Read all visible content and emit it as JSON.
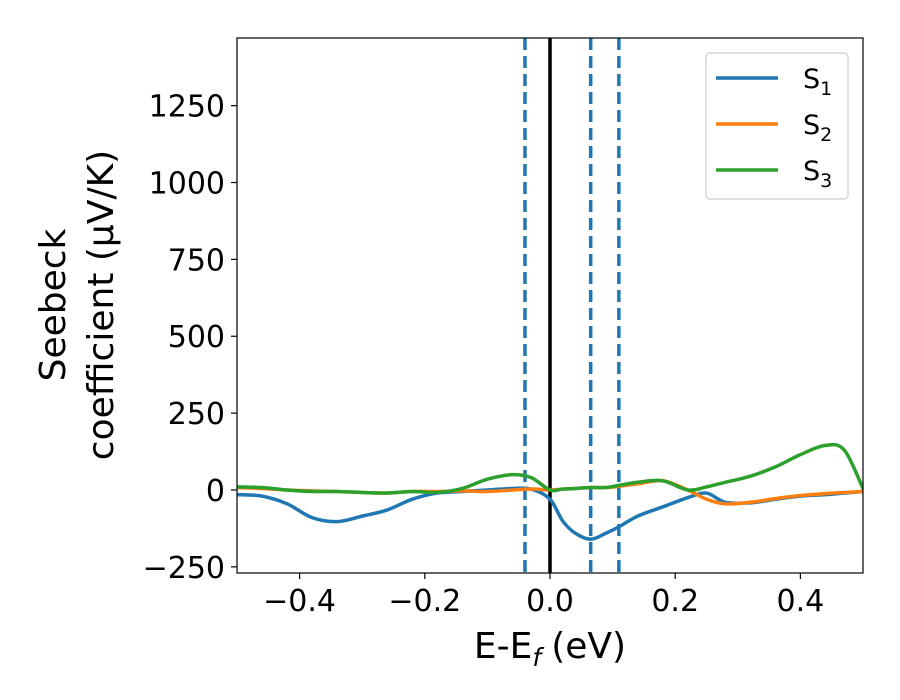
{
  "chart_data": {
    "type": "line",
    "xlabel": "E-E",
    "xlabel_sub": "f",
    "xlabel_unit": "(eV)",
    "ylabel_line1": "Seebeck",
    "ylabel_line2": "coefficient  (μV/K)",
    "xlim": [
      -0.5,
      0.5
    ],
    "ylim": [
      -270,
      1470
    ],
    "xticks": [
      -0.4,
      -0.2,
      0.0,
      0.2,
      0.4
    ],
    "xtick_labels": [
      "−0.4",
      "−0.2",
      "0.0",
      "0.2",
      "0.4"
    ],
    "yticks": [
      -250,
      0,
      250,
      500,
      750,
      1000,
      1250
    ],
    "ytick_labels": [
      "−250",
      "0",
      "250",
      "500",
      "750",
      "1000",
      "1250"
    ],
    "grid": false,
    "legend_position": "top-right",
    "vlines": [
      {
        "x": -0.04,
        "style": "dashed",
        "color": "#1f77b4"
      },
      {
        "x": 0.0,
        "style": "solid",
        "color": "#000000"
      },
      {
        "x": 0.065,
        "style": "dashed",
        "color": "#1f77b4"
      },
      {
        "x": 0.11,
        "style": "dashed",
        "color": "#1f77b4"
      }
    ],
    "series": [
      {
        "name": "S",
        "sub": "1",
        "color": "#1f77b4",
        "x": [
          -0.5,
          -0.46,
          -0.42,
          -0.38,
          -0.34,
          -0.3,
          -0.26,
          -0.22,
          -0.18,
          -0.14,
          -0.1,
          -0.06,
          -0.03,
          0.0,
          0.02,
          0.04,
          0.065,
          0.09,
          0.11,
          0.14,
          0.18,
          0.22,
          0.25,
          0.28,
          0.32,
          0.36,
          0.4,
          0.44,
          0.47,
          0.5
        ],
        "y": [
          -15,
          -20,
          -45,
          -90,
          -103,
          -85,
          -65,
          -30,
          -10,
          -5,
          0,
          5,
          3,
          -30,
          -100,
          -140,
          -160,
          -140,
          -120,
          -85,
          -55,
          -25,
          -10,
          -40,
          -42,
          -30,
          -20,
          -15,
          -10,
          -5
        ]
      },
      {
        "name": "S",
        "sub": "2",
        "color": "#ff7f0e",
        "x": [
          -0.5,
          -0.46,
          -0.42,
          -0.38,
          -0.34,
          -0.3,
          -0.26,
          -0.22,
          -0.18,
          -0.14,
          -0.1,
          -0.06,
          -0.03,
          0.0,
          0.02,
          0.04,
          0.065,
          0.09,
          0.11,
          0.14,
          0.18,
          0.22,
          0.25,
          0.28,
          0.32,
          0.36,
          0.4,
          0.44,
          0.47,
          0.5
        ],
        "y": [
          8,
          5,
          0,
          -3,
          -5,
          -8,
          -10,
          -5,
          -5,
          -3,
          -5,
          0,
          3,
          0,
          3,
          5,
          8,
          8,
          12,
          20,
          30,
          0,
          -30,
          -45,
          -40,
          -28,
          -18,
          -12,
          -8,
          -5
        ]
      },
      {
        "name": "S",
        "sub": "3",
        "color": "#2ca02c",
        "x": [
          -0.5,
          -0.46,
          -0.42,
          -0.38,
          -0.34,
          -0.3,
          -0.26,
          -0.22,
          -0.18,
          -0.14,
          -0.1,
          -0.06,
          -0.03,
          0.0,
          0.02,
          0.04,
          0.065,
          0.09,
          0.11,
          0.14,
          0.18,
          0.22,
          0.25,
          0.28,
          0.32,
          0.36,
          0.4,
          0.44,
          0.47,
          0.5
        ],
        "y": [
          10,
          8,
          0,
          -5,
          -5,
          -8,
          -10,
          -5,
          -8,
          5,
          35,
          50,
          40,
          0,
          3,
          5,
          8,
          8,
          15,
          25,
          30,
          0,
          10,
          25,
          45,
          75,
          115,
          145,
          130,
          5
        ]
      }
    ]
  }
}
